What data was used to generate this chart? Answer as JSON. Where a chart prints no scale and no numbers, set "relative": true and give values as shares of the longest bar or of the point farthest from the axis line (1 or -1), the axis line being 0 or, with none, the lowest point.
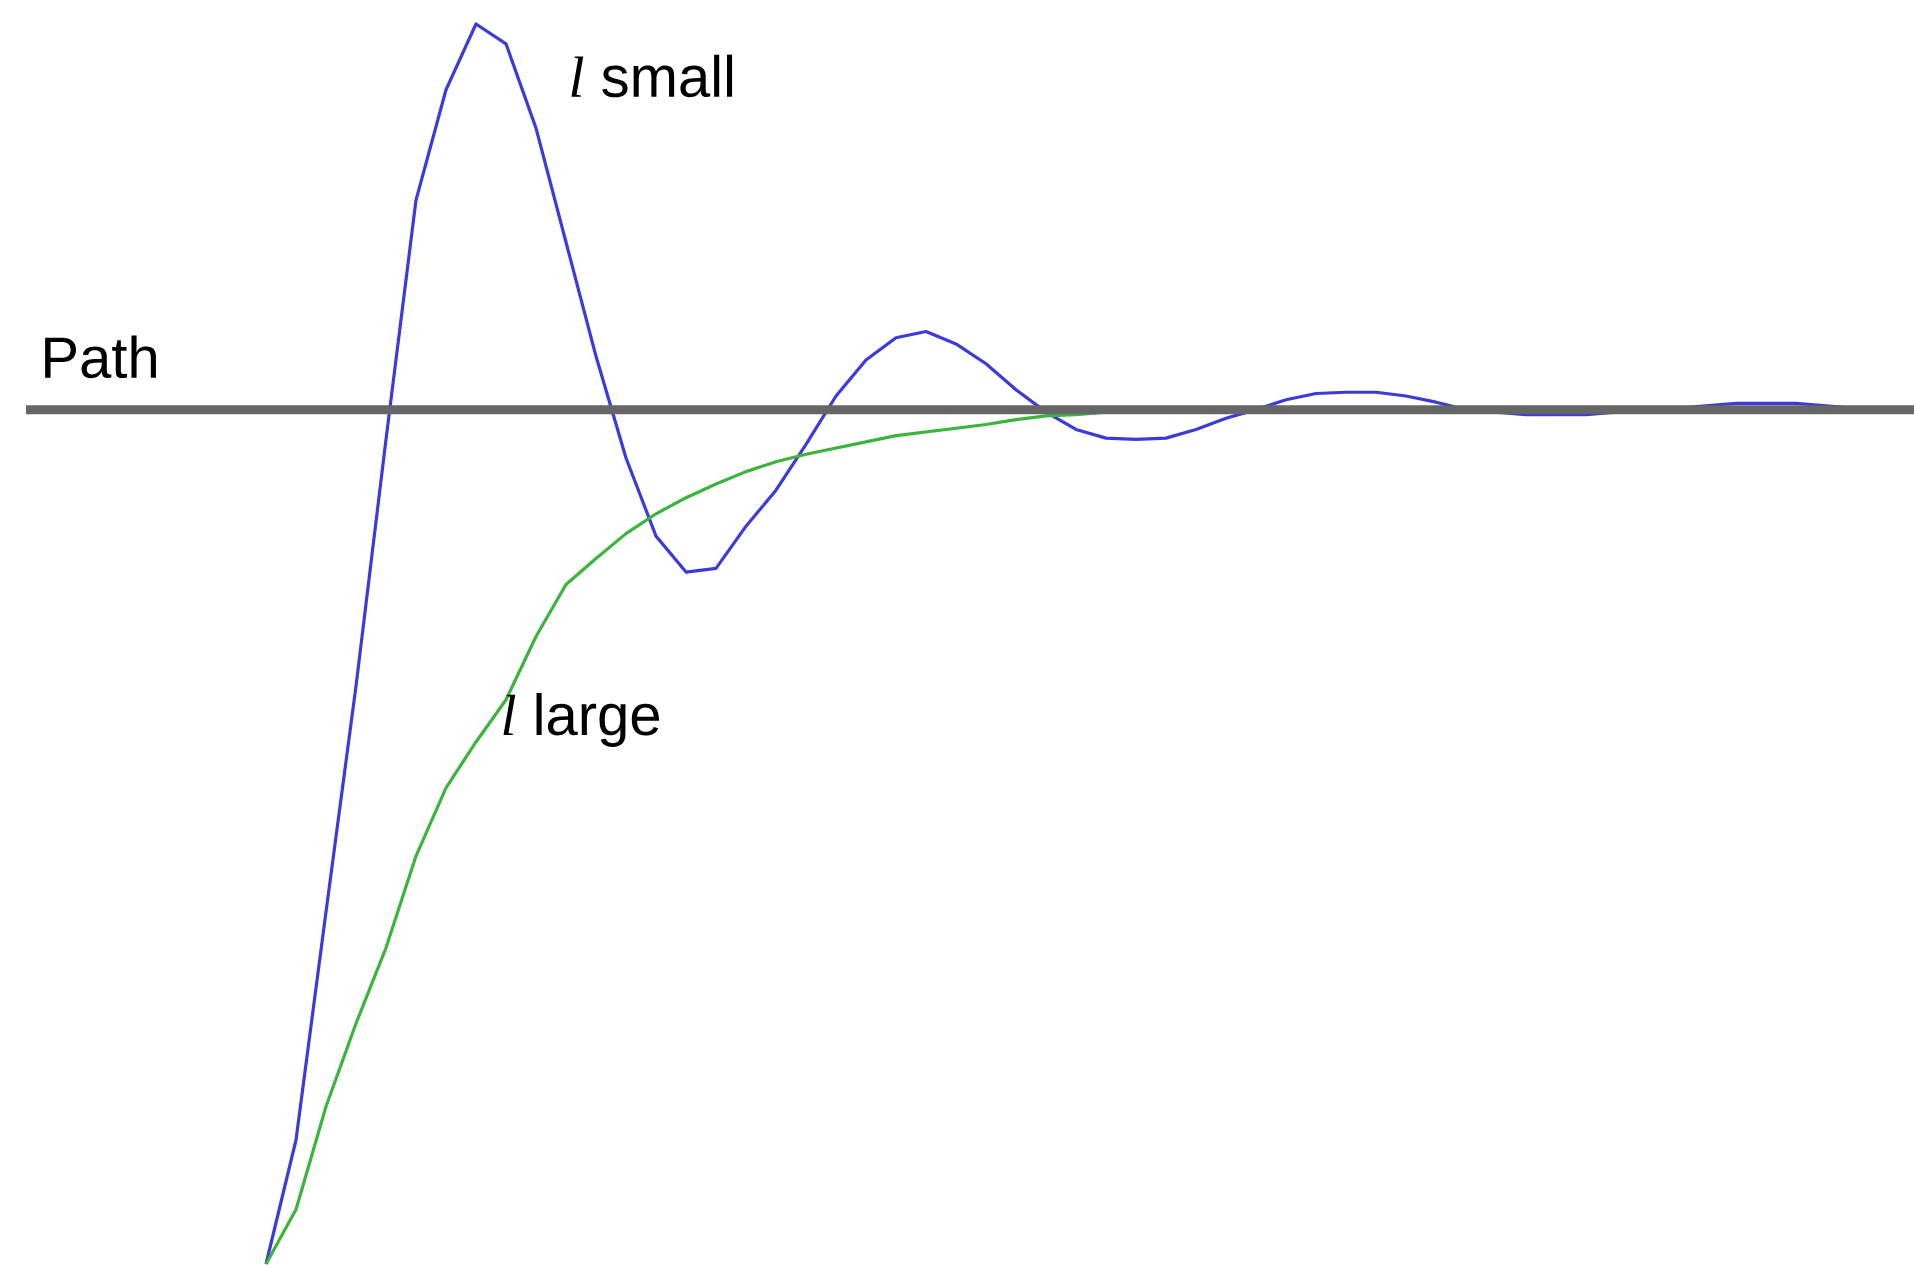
{
  "chart_data": {
    "type": "line",
    "relative": true,
    "categories": [
      null,
      null,
      null,
      null,
      null,
      null,
      null,
      null,
      null,
      null,
      null,
      null,
      null,
      null,
      null,
      null,
      null,
      null,
      null,
      null,
      null,
      null,
      null,
      null,
      null,
      null,
      null,
      null,
      null,
      null,
      null,
      null,
      null,
      null,
      null,
      null,
      null,
      null,
      null,
      null,
      null,
      null,
      null,
      null,
      null,
      null,
      null,
      null,
      null,
      null,
      null,
      null,
      null,
      null,
      null
    ],
    "series": [
      {
        "name": "*l* small",
        "color": "#3b3bdb",
        "values": [
          0,
          0.1,
          0.284,
          0.466,
          0.665,
          0.858,
          0.947,
          1,
          0.984,
          0.916,
          0.824,
          0.732,
          0.65,
          0.587,
          0.558,
          0.561,
          0.595,
          0.624,
          0.661,
          0.7,
          0.729,
          0.747,
          0.752,
          0.742,
          0.726,
          0.705,
          0.687,
          0.673,
          0.666,
          0.665,
          0.666,
          0.673,
          0.682,
          0.689,
          0.697,
          0.702,
          0.703,
          0.703,
          0.7,
          0.695,
          0.689,
          0.687,
          0.685,
          0.685,
          0.685,
          0.687,
          0.689,
          0.69,
          0.692,
          0.694,
          0.694,
          0.694,
          0.692,
          0.69,
          null
        ]
      },
      {
        "name": "*l* large",
        "color": "#3cb43c",
        "values": [
          0,
          0.044,
          0.127,
          0.194,
          0.255,
          0.329,
          0.384,
          0.421,
          0.455,
          0.506,
          0.548,
          0.569,
          0.589,
          0.605,
          0.618,
          0.629,
          0.639,
          0.647,
          0.653,
          0.658,
          0.663,
          0.668,
          0.671,
          0.674,
          0.677,
          0.681,
          0.684,
          0.685,
          0.687,
          0.689,
          0.689,
          null,
          null,
          null,
          null,
          null,
          null,
          null,
          null,
          null,
          null,
          null,
          null,
          null,
          null,
          null,
          null,
          null,
          null,
          null,
          null,
          null,
          null,
          null,
          null
        ]
      }
    ],
    "ref_lines": [
      {
        "axis": "y",
        "value": 0.689,
        "label": "Path",
        "color": "#666666"
      }
    ]
  }
}
